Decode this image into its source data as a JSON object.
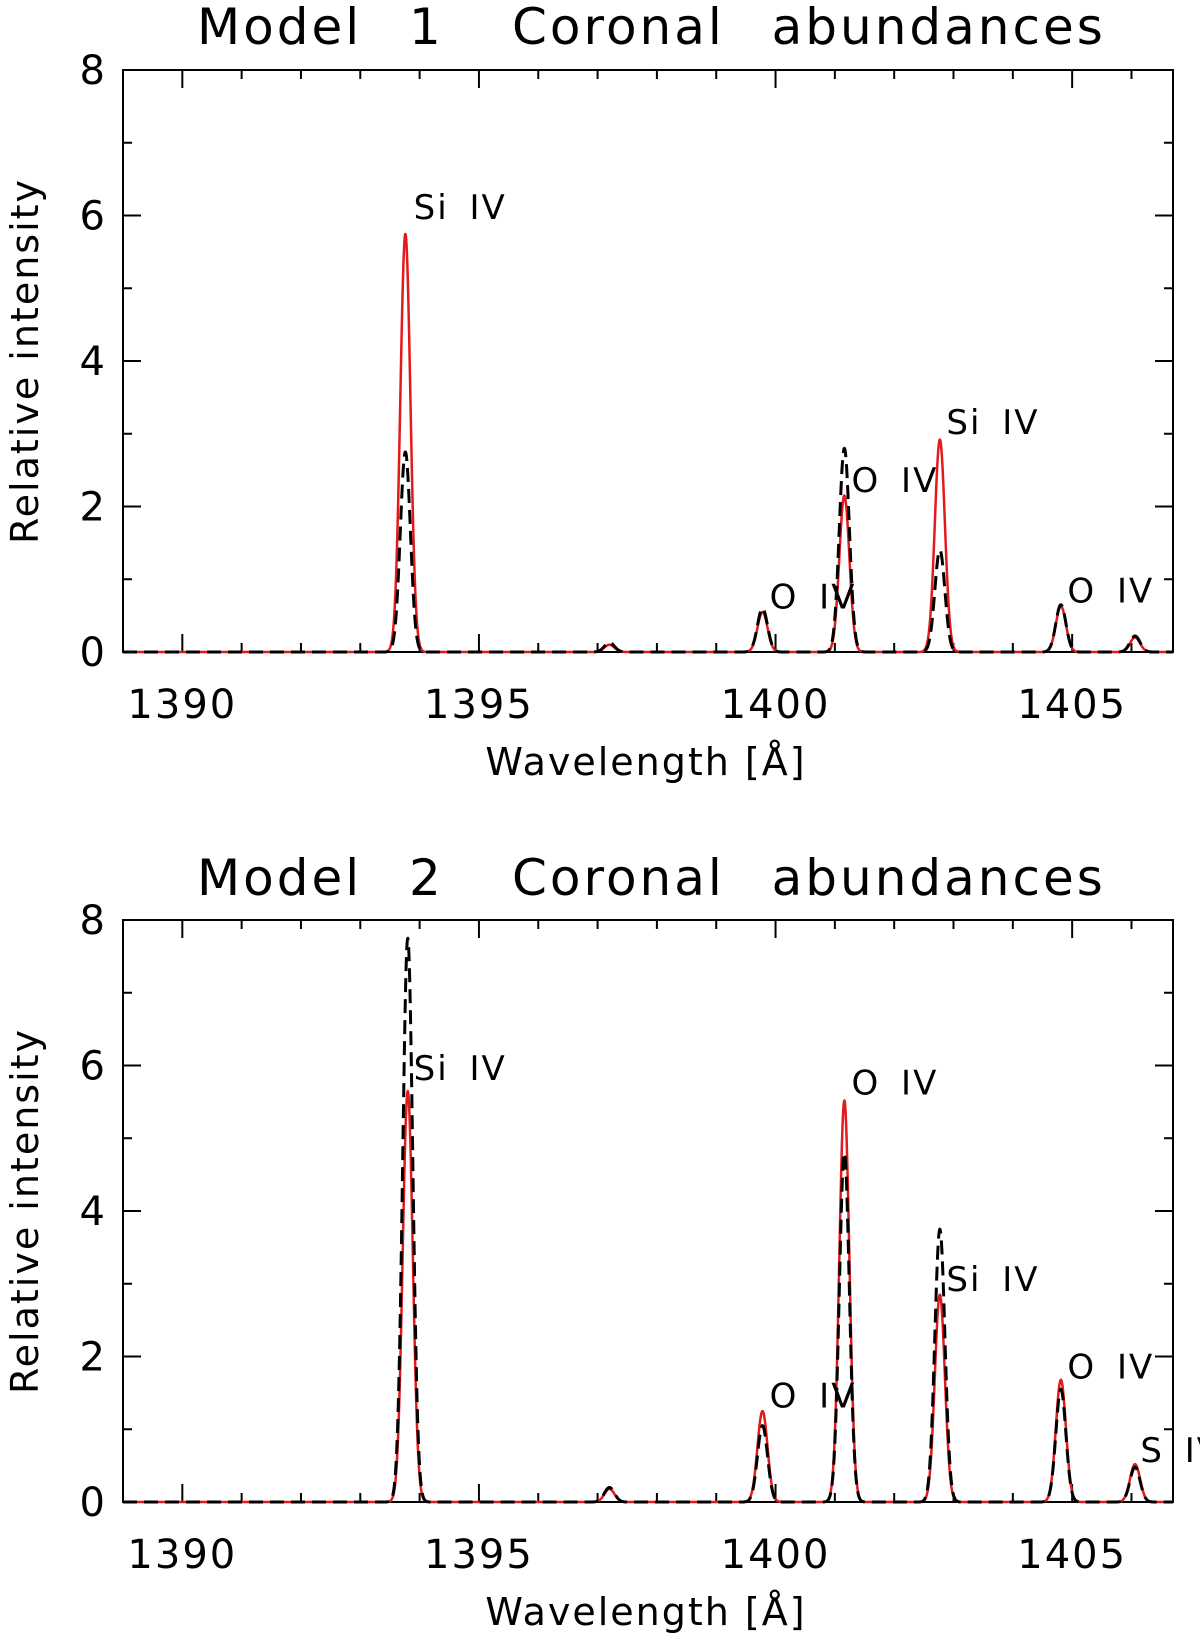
{
  "chart_data": [
    {
      "type": "line",
      "title_left": "Model 1",
      "title_right": "Coronal abundances",
      "xlabel": "Wavelength [Å]",
      "ylabel": "Relative intensity",
      "xlim": [
        1389.0,
        1406.7
      ],
      "ylim": [
        0,
        8
      ],
      "x_ticks": [
        "1390",
        "1395",
        "1400",
        "1405"
      ],
      "y_ticks": [
        "0",
        "2",
        "4",
        "6",
        "8"
      ],
      "line_width_A": 0.085,
      "colors": {
        "solid": "#e31a1c",
        "dashed": "#000000"
      },
      "series": [
        {
          "name": "solid (red)",
          "style": "solid",
          "peaks": [
            [
              1393.76,
              5.75
            ],
            [
              1397.2,
              0.1
            ],
            [
              1399.78,
              0.55
            ],
            [
              1401.16,
              2.15
            ],
            [
              1402.77,
              2.92
            ],
            [
              1404.81,
              0.63
            ],
            [
              1406.06,
              0.2
            ]
          ]
        },
        {
          "name": "dashed (black)",
          "style": "dashed",
          "peaks": [
            [
              1393.76,
              2.75
            ],
            [
              1397.2,
              0.13
            ],
            [
              1399.78,
              0.6
            ],
            [
              1401.16,
              2.8
            ],
            [
              1402.77,
              1.4
            ],
            [
              1404.81,
              0.65
            ],
            [
              1406.06,
              0.22
            ]
          ]
        }
      ],
      "annotations": [
        {
          "text": "Si IV",
          "x": 1393.9,
          "y": 5.95
        },
        {
          "text": "O IV",
          "x": 1399.9,
          "y": 0.6
        },
        {
          "text": "O IV",
          "x": 1401.28,
          "y": 2.2
        },
        {
          "text": "Si IV",
          "x": 1402.88,
          "y": 3.0
        },
        {
          "text": "O IV",
          "x": 1404.92,
          "y": 0.68
        }
      ]
    },
    {
      "type": "line",
      "title_left": "Model 2",
      "title_right": "Coronal abundances",
      "xlabel": "Wavelength [Å]",
      "ylabel": "Relative intensity",
      "xlim": [
        1389.0,
        1406.7
      ],
      "ylim": [
        0,
        8
      ],
      "x_ticks": [
        "1390",
        "1395",
        "1400",
        "1405"
      ],
      "y_ticks": [
        "0",
        "2",
        "4",
        "6",
        "8"
      ],
      "line_width_A": 0.085,
      "colors": {
        "solid": "#e31a1c",
        "dashed": "#000000"
      },
      "series": [
        {
          "name": "solid (red)",
          "style": "solid",
          "peaks": [
            [
              1393.8,
              5.65
            ],
            [
              1397.2,
              0.18
            ],
            [
              1399.78,
              1.25
            ],
            [
              1401.16,
              5.52
            ],
            [
              1402.77,
              2.85
            ],
            [
              1404.81,
              1.68
            ],
            [
              1406.06,
              0.52
            ]
          ]
        },
        {
          "name": "dashed (black)",
          "style": "dashed",
          "peaks": [
            [
              1393.8,
              7.75
            ],
            [
              1397.2,
              0.2
            ],
            [
              1399.78,
              1.05
            ],
            [
              1401.16,
              4.8
            ],
            [
              1402.77,
              3.75
            ],
            [
              1404.81,
              1.55
            ],
            [
              1406.06,
              0.48
            ]
          ]
        }
      ],
      "annotations": [
        {
          "text": "Si IV",
          "x": 1393.9,
          "y": 5.8
        },
        {
          "text": "O IV",
          "x": 1399.9,
          "y": 1.3
        },
        {
          "text": "O IV",
          "x": 1401.28,
          "y": 5.6
        },
        {
          "text": "Si IV",
          "x": 1402.88,
          "y": 2.9
        },
        {
          "text": "O IV",
          "x": 1404.92,
          "y": 1.7
        },
        {
          "text": "S IV",
          "x": 1406.15,
          "y": 0.55
        }
      ]
    }
  ]
}
